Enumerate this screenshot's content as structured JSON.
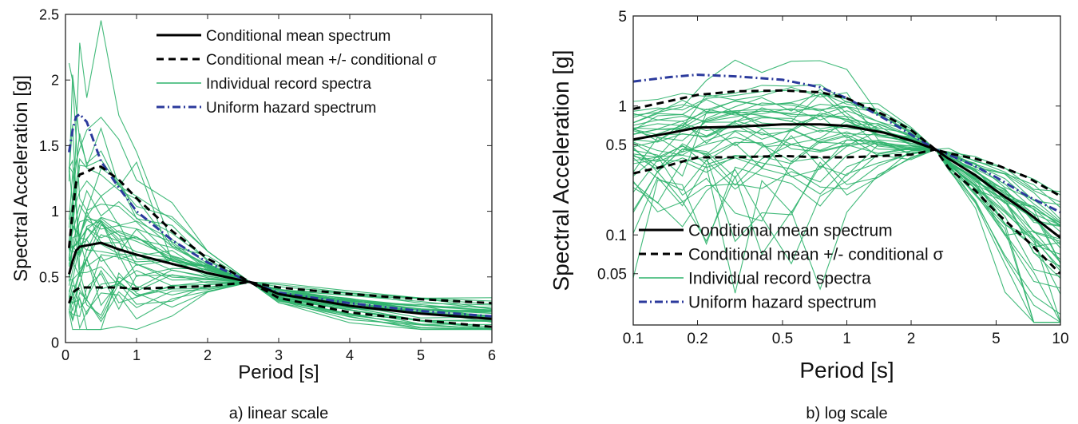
{
  "colors": {
    "mean": "#000000",
    "bounds": "#000000",
    "records": "#2eb36b",
    "uhs": "#2b3a9c"
  },
  "chart_data": [
    {
      "type": "line",
      "caption": "a) linear scale",
      "xlabel": "Period [s]",
      "ylabel": "Spectral Acceleration [g]",
      "xscale": "linear",
      "yscale": "linear",
      "xlim": [
        0,
        6
      ],
      "ylim": [
        0,
        2.5
      ],
      "xticks": [
        "0",
        "1",
        "2",
        "3",
        "4",
        "5",
        "6"
      ],
      "yticks": [
        "0",
        "0.5",
        "1",
        "1.5",
        "2",
        "2.5"
      ],
      "legend_position": "top-right",
      "legend": [
        "Conditional mean spectrum",
        "Conditional mean +/- conditional σ",
        "Individual record spectra",
        "Uniform hazard spectrum"
      ],
      "series": [
        {
          "name": "Conditional mean spectrum",
          "style": "solid",
          "x": [
            0.05,
            0.1,
            0.15,
            0.2,
            0.3,
            0.4,
            0.5,
            0.75,
            1.0,
            1.5,
            2.0,
            2.6,
            3.0,
            4.0,
            5.0,
            6.0
          ],
          "y": [
            0.52,
            0.62,
            0.7,
            0.73,
            0.74,
            0.75,
            0.76,
            0.71,
            0.67,
            0.6,
            0.53,
            0.46,
            0.37,
            0.28,
            0.22,
            0.18
          ]
        },
        {
          "name": "Conditional mean + conditional σ",
          "style": "dashed",
          "x": [
            0.05,
            0.1,
            0.15,
            0.2,
            0.3,
            0.4,
            0.5,
            0.75,
            1.0,
            1.5,
            2.0,
            2.6,
            3.0,
            4.0,
            5.0,
            6.0
          ],
          "y": [
            0.72,
            1.0,
            1.22,
            1.28,
            1.3,
            1.33,
            1.34,
            1.24,
            1.1,
            0.85,
            0.64,
            0.46,
            0.42,
            0.37,
            0.33,
            0.3
          ]
        },
        {
          "name": "Conditional mean - conditional σ",
          "style": "dashed",
          "x": [
            0.05,
            0.1,
            0.15,
            0.2,
            0.3,
            0.4,
            0.5,
            0.75,
            1.0,
            1.5,
            2.0,
            2.6,
            3.0,
            4.0,
            5.0,
            6.0
          ],
          "y": [
            0.3,
            0.38,
            0.4,
            0.42,
            0.42,
            0.42,
            0.42,
            0.42,
            0.41,
            0.42,
            0.43,
            0.46,
            0.34,
            0.23,
            0.17,
            0.12
          ]
        },
        {
          "name": "Uniform hazard spectrum",
          "style": "dashdot",
          "x": [
            0.05,
            0.1,
            0.15,
            0.2,
            0.3,
            0.5,
            0.75,
            1.0,
            1.5,
            2.0,
            2.6,
            3.0,
            4.0,
            5.0,
            6.0
          ],
          "y": [
            1.45,
            1.62,
            1.72,
            1.74,
            1.68,
            1.38,
            1.18,
            1.0,
            0.78,
            0.61,
            0.46,
            0.38,
            0.3,
            0.24,
            0.2
          ]
        }
      ],
      "records": {
        "name": "Individual record spectra",
        "count": 40,
        "x": [
          0.05,
          0.1,
          0.2,
          0.3,
          0.5,
          0.75,
          1.0,
          1.5,
          2.0,
          2.6,
          3.0,
          4.0,
          5.0,
          6.0
        ]
      }
    },
    {
      "type": "line",
      "caption": "b) log scale",
      "xlabel": "Period [s]",
      "ylabel": "Spectral Acceleration [g]",
      "xscale": "log",
      "yscale": "log",
      "xlim": [
        0.1,
        10
      ],
      "ylim": [
        0.02,
        5
      ],
      "xticks": [
        "0.1",
        "0.2",
        "0.5",
        "1",
        "2",
        "5",
        "10"
      ],
      "yticks": [
        "0.05",
        "0.1",
        "0.5",
        "1",
        "5"
      ],
      "legend_position": "bottom-left",
      "legend": [
        "Conditional mean spectrum",
        "Conditional mean +/- conditional σ",
        "Individual record spectra",
        "Uniform hazard spectrum"
      ],
      "series": [
        {
          "name": "Conditional mean spectrum",
          "style": "solid",
          "x": [
            0.1,
            0.15,
            0.2,
            0.3,
            0.5,
            0.75,
            1.0,
            1.5,
            2.0,
            2.6,
            3.0,
            4.0,
            5.0,
            7.0,
            10.0
          ],
          "y": [
            0.55,
            0.62,
            0.68,
            0.69,
            0.72,
            0.72,
            0.7,
            0.62,
            0.54,
            0.46,
            0.39,
            0.29,
            0.22,
            0.15,
            0.095
          ]
        },
        {
          "name": "Conditional mean + conditional σ",
          "style": "dashed",
          "x": [
            0.1,
            0.15,
            0.2,
            0.3,
            0.5,
            0.75,
            1.0,
            1.5,
            2.0,
            2.6,
            3.0,
            4.0,
            5.0,
            7.0,
            10.0
          ],
          "y": [
            0.95,
            1.1,
            1.22,
            1.3,
            1.32,
            1.28,
            1.15,
            0.85,
            0.65,
            0.46,
            0.43,
            0.39,
            0.35,
            0.28,
            0.2
          ]
        },
        {
          "name": "Conditional mean - conditional σ",
          "style": "dashed",
          "x": [
            0.1,
            0.15,
            0.2,
            0.3,
            0.5,
            0.75,
            1.0,
            1.5,
            2.0,
            2.6,
            3.0,
            4.0,
            5.0,
            7.0,
            10.0
          ],
          "y": [
            0.3,
            0.35,
            0.4,
            0.4,
            0.41,
            0.4,
            0.4,
            0.41,
            0.42,
            0.46,
            0.33,
            0.22,
            0.15,
            0.09,
            0.05
          ]
        },
        {
          "name": "Uniform hazard spectrum",
          "style": "dashdot",
          "x": [
            0.1,
            0.15,
            0.2,
            0.3,
            0.5,
            0.75,
            1.0,
            1.5,
            2.0,
            2.6,
            3.0,
            4.0,
            5.0,
            7.0,
            10.0
          ],
          "y": [
            1.55,
            1.68,
            1.75,
            1.7,
            1.6,
            1.4,
            1.15,
            0.8,
            0.6,
            0.46,
            0.42,
            0.34,
            0.28,
            0.2,
            0.15
          ]
        }
      ],
      "records": {
        "name": "Individual record spectra",
        "count": 40,
        "x": [
          0.1,
          0.13,
          0.17,
          0.22,
          0.3,
          0.4,
          0.55,
          0.75,
          1.0,
          1.4,
          2.0,
          2.6,
          3.0,
          4.0,
          5.5,
          7.5,
          10.0
        ]
      }
    }
  ]
}
